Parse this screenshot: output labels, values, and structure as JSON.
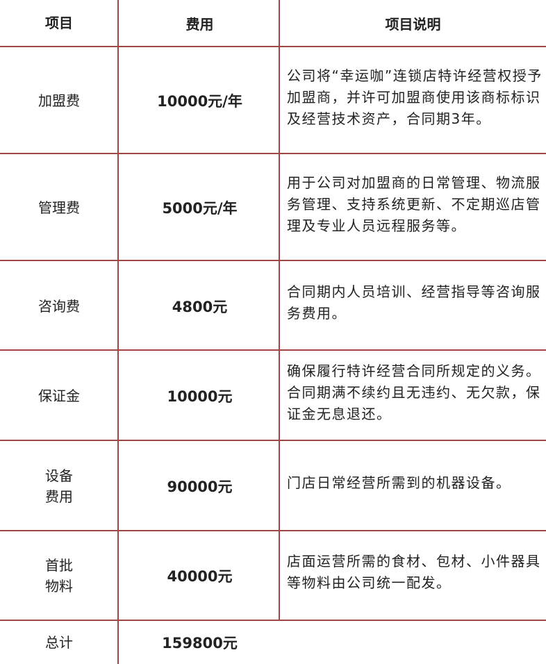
{
  "colors": {
    "border": "#a04646",
    "text": "#222222"
  },
  "header": {
    "item": "项目",
    "cost": "费用",
    "desc": "项目说明"
  },
  "rows": [
    {
      "item": "加盟费",
      "cost": "10000元/年",
      "desc": "公司将“幸运咖”连锁店特许经营权授予加盟商，并许可加盟商使用该商标标识及经营技术资产，合同期3年。"
    },
    {
      "item": "管理费",
      "cost": "5000元/年",
      "desc": "用于公司对加盟商的日常管理、物流服务管理、支持系统更新、不定期巡店管理及专业人员远程服务等。"
    },
    {
      "item": "咨询费",
      "cost": "4800元",
      "desc": "合同期内人员培训、经营指导等咨询服务费用。"
    },
    {
      "item": "保证金",
      "cost": "10000元",
      "desc": "确保履行特许经营合同所规定的义务。合同期满不续约且无违约、无欠款，保证金无息退还。"
    },
    {
      "item": "设备费用",
      "item_lines": [
        "设备",
        "费用"
      ],
      "cost": "90000元",
      "desc": "门店日常经营所需到的机器设备。"
    },
    {
      "item": "首批物料",
      "item_lines": [
        "首批",
        "物料"
      ],
      "cost": "40000元",
      "desc": "店面运营所需的食材、包材、小件器具等物料由公司统一配发。"
    }
  ],
  "total": {
    "label": "总计",
    "value": "159800元"
  }
}
